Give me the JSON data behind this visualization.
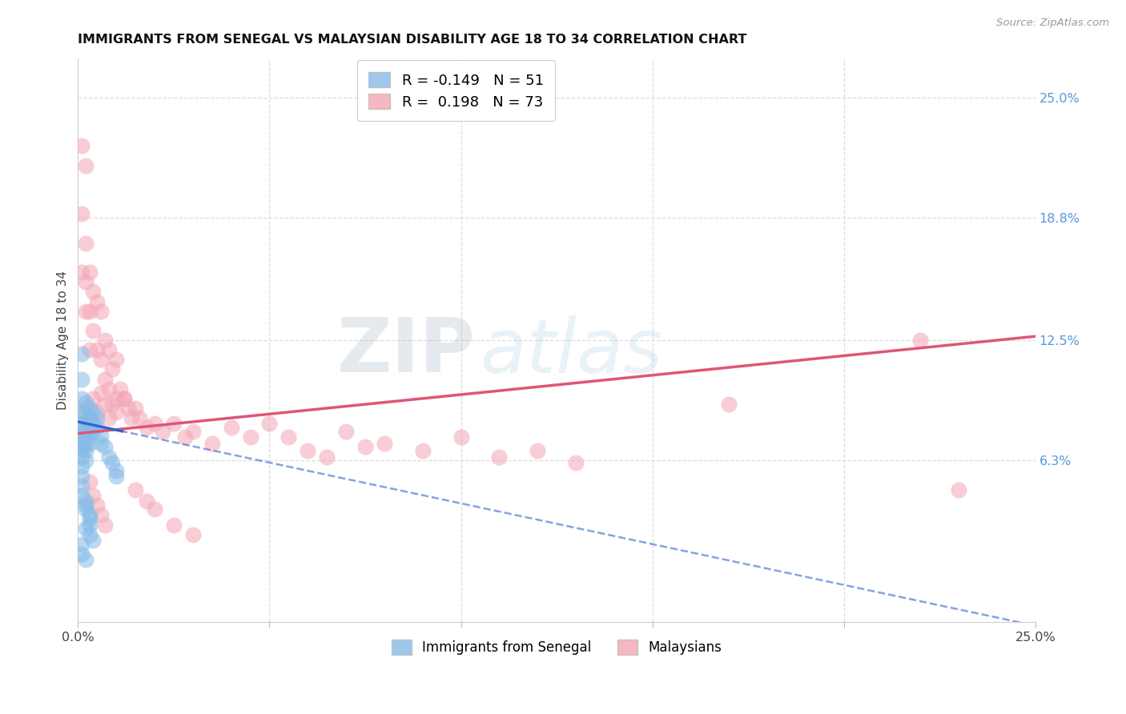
{
  "title": "IMMIGRANTS FROM SENEGAL VS MALAYSIAN DISABILITY AGE 18 TO 34 CORRELATION CHART",
  "source": "Source: ZipAtlas.com",
  "ylabel": "Disability Age 18 to 34",
  "xlim": [
    0.0,
    0.25
  ],
  "ylim": [
    -0.02,
    0.27
  ],
  "xtick_labels": [
    "0.0%",
    "",
    "",
    "",
    "",
    "25.0%"
  ],
  "xtick_vals": [
    0.0,
    0.05,
    0.1,
    0.15,
    0.2,
    0.25
  ],
  "ytick_labels_right": [
    "25.0%",
    "18.8%",
    "12.5%",
    "6.3%"
  ],
  "ytick_vals_right": [
    0.25,
    0.188,
    0.125,
    0.063
  ],
  "senegal_color": "#85BBE8",
  "malaysian_color": "#F4A5B5",
  "senegal_line_color": "#3366CC",
  "malaysian_line_color": "#E05575",
  "watermark_zip": "ZIP",
  "watermark_atlas": "atlas",
  "grid_color": "#DDDDDD",
  "senegal_x": [
    0.001,
    0.001,
    0.001,
    0.001,
    0.001,
    0.001,
    0.001,
    0.001,
    0.001,
    0.001,
    0.002,
    0.002,
    0.002,
    0.002,
    0.002,
    0.002,
    0.002,
    0.002,
    0.003,
    0.003,
    0.003,
    0.003,
    0.003,
    0.004,
    0.004,
    0.004,
    0.005,
    0.005,
    0.006,
    0.006,
    0.007,
    0.008,
    0.009,
    0.01,
    0.01,
    0.001,
    0.001,
    0.002,
    0.002,
    0.003,
    0.003,
    0.002,
    0.003,
    0.004,
    0.001,
    0.001,
    0.002,
    0.001,
    0.001,
    0.002,
    0.003
  ],
  "senegal_y": [
    0.095,
    0.088,
    0.082,
    0.078,
    0.075,
    0.072,
    0.069,
    0.065,
    0.06,
    0.055,
    0.093,
    0.087,
    0.083,
    0.079,
    0.075,
    0.071,
    0.068,
    0.063,
    0.09,
    0.085,
    0.08,
    0.076,
    0.072,
    0.088,
    0.083,
    0.078,
    0.085,
    0.08,
    0.076,
    0.072,
    0.07,
    0.065,
    0.062,
    0.058,
    0.055,
    0.05,
    0.045,
    0.042,
    0.038,
    0.035,
    0.03,
    0.028,
    0.025,
    0.022,
    0.02,
    0.015,
    0.012,
    0.118,
    0.105,
    0.04,
    0.033
  ],
  "malaysian_x": [
    0.001,
    0.001,
    0.001,
    0.002,
    0.002,
    0.002,
    0.002,
    0.003,
    0.003,
    0.003,
    0.004,
    0.004,
    0.005,
    0.005,
    0.006,
    0.006,
    0.007,
    0.007,
    0.008,
    0.008,
    0.009,
    0.01,
    0.01,
    0.011,
    0.012,
    0.013,
    0.014,
    0.015,
    0.016,
    0.018,
    0.02,
    0.022,
    0.025,
    0.028,
    0.03,
    0.035,
    0.04,
    0.045,
    0.05,
    0.055,
    0.06,
    0.065,
    0.07,
    0.075,
    0.08,
    0.09,
    0.1,
    0.11,
    0.12,
    0.13,
    0.002,
    0.003,
    0.004,
    0.005,
    0.006,
    0.007,
    0.008,
    0.009,
    0.01,
    0.012,
    0.015,
    0.018,
    0.02,
    0.025,
    0.03,
    0.003,
    0.004,
    0.005,
    0.006,
    0.007,
    0.17,
    0.22,
    0.23
  ],
  "malaysian_y": [
    0.225,
    0.19,
    0.16,
    0.215,
    0.175,
    0.155,
    0.14,
    0.16,
    0.14,
    0.12,
    0.15,
    0.13,
    0.145,
    0.12,
    0.14,
    0.115,
    0.125,
    0.105,
    0.12,
    0.1,
    0.11,
    0.115,
    0.095,
    0.1,
    0.095,
    0.09,
    0.085,
    0.09,
    0.085,
    0.08,
    0.082,
    0.078,
    0.082,
    0.075,
    0.078,
    0.072,
    0.08,
    0.075,
    0.082,
    0.075,
    0.068,
    0.065,
    0.078,
    0.07,
    0.072,
    0.068,
    0.075,
    0.065,
    0.068,
    0.062,
    0.09,
    0.085,
    0.095,
    0.088,
    0.098,
    0.092,
    0.085,
    0.092,
    0.088,
    0.095,
    0.048,
    0.042,
    0.038,
    0.03,
    0.025,
    0.052,
    0.045,
    0.04,
    0.035,
    0.03,
    0.092,
    0.125,
    0.048
  ]
}
